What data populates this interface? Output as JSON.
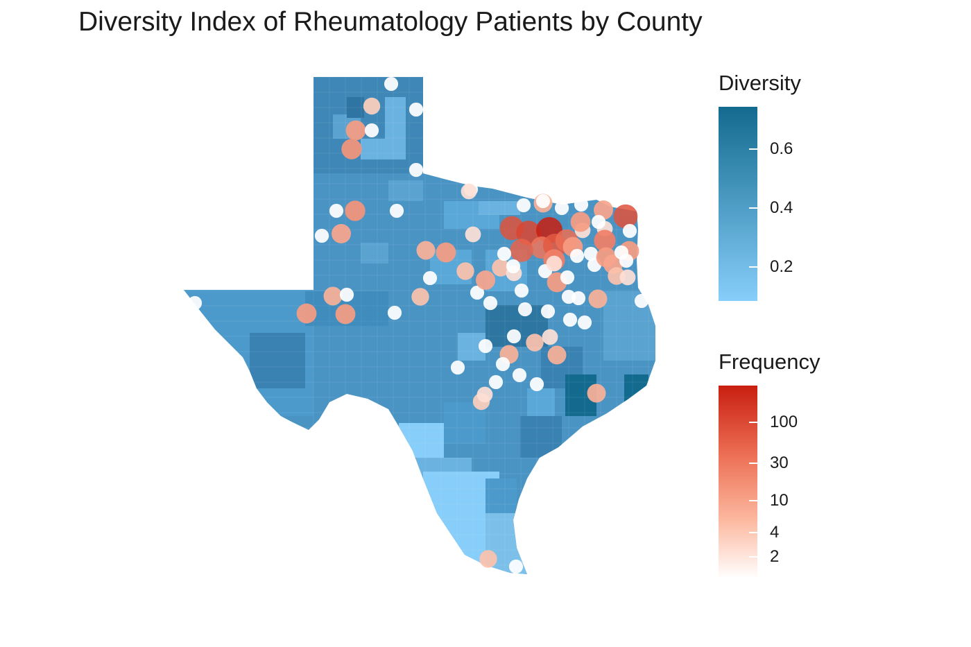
{
  "title": "Diversity Index of Rheumatology Patients by County",
  "legend": {
    "diversity": {
      "title": "Diversity",
      "ticks": [
        "0.6",
        "0.4",
        "0.2"
      ],
      "low_color": "#87cefa",
      "high_color": "#136a8f"
    },
    "frequency": {
      "title": "Frequency",
      "ticks": [
        "100",
        "30",
        "10",
        "4",
        "2"
      ],
      "low_color": "#ffffff",
      "high_color": "#c81e10"
    }
  },
  "colors": {
    "state_fill": "#4a94c4",
    "dark_region": "#2d76a2",
    "darkest_region": "#136a8f",
    "light_region": "#87cefa",
    "mid_light_region": "#6ab2e0"
  },
  "map_data": {
    "region": "Texas",
    "points": [
      {
        "freq": 1
      },
      {
        "freq": 3
      },
      {
        "freq": 1
      },
      {
        "freq": 10
      },
      {
        "freq": 1
      },
      {
        "freq": 12
      },
      {
        "freq": 1
      },
      {
        "freq": 1
      },
      {
        "freq": 12
      },
      {
        "freq": 1
      },
      {
        "freq": 1
      },
      {
        "freq": 1
      },
      {
        "freq": 8
      },
      {
        "freq": 6
      },
      {
        "freq": 10
      },
      {
        "freq": 2
      },
      {
        "freq": 4
      },
      {
        "freq": 1
      },
      {
        "freq": 4
      },
      {
        "freq": 1
      },
      {
        "freq": 8
      },
      {
        "freq": 1
      },
      {
        "freq": 6
      },
      {
        "freq": 1
      },
      {
        "freq": 10
      },
      {
        "freq": 10
      },
      {
        "freq": 1
      },
      {
        "freq": 1
      },
      {
        "freq": 1
      },
      {
        "freq": 6
      },
      {
        "freq": 1
      },
      {
        "freq": 1
      },
      {
        "freq": 8
      },
      {
        "freq": 60
      },
      {
        "freq": 60
      },
      {
        "freq": 80
      },
      {
        "freq": 200
      },
      {
        "freq": 25
      },
      {
        "freq": 40
      },
      {
        "freq": 50
      },
      {
        "freq": 20
      },
      {
        "freq": 1
      },
      {
        "freq": 10
      },
      {
        "freq": 1
      },
      {
        "freq": 2
      },
      {
        "freq": 10
      },
      {
        "freq": 2
      },
      {
        "freq": 1
      },
      {
        "freq": 20
      },
      {
        "freq": 10
      },
      {
        "freq": 30
      },
      {
        "freq": 10
      },
      {
        "freq": 1
      },
      {
        "freq": 1
      },
      {
        "freq": 1
      },
      {
        "freq": 10
      },
      {
        "freq": 8
      },
      {
        "freq": 1
      },
      {
        "freq": 4
      },
      {
        "freq": 2
      },
      {
        "freq": 1
      },
      {
        "freq": 4
      },
      {
        "freq": 2
      },
      {
        "freq": 1
      },
      {
        "freq": 1
      },
      {
        "freq": 1
      },
      {
        "freq": 1
      },
      {
        "freq": 6
      },
      {
        "freq": 1
      },
      {
        "freq": 1
      },
      {
        "freq": 1
      },
      {
        "freq": 1
      },
      {
        "freq": 1
      },
      {
        "freq": 1
      },
      {
        "freq": 4
      },
      {
        "freq": 2
      },
      {
        "freq": 6
      },
      {
        "freq": 6
      },
      {
        "freq": 1
      },
      {
        "freq": 1
      },
      {
        "freq": 1
      },
      {
        "freq": 1
      },
      {
        "freq": 1
      },
      {
        "freq": 1
      },
      {
        "freq": 3
      },
      {
        "freq": 2
      },
      {
        "freq": 6
      },
      {
        "freq": 4
      },
      {
        "freq": 1
      },
      {
        "freq": 1
      },
      {
        "freq": 1
      },
      {
        "freq": 2
      },
      {
        "freq": 2
      },
      {
        "freq": 1
      }
    ]
  }
}
